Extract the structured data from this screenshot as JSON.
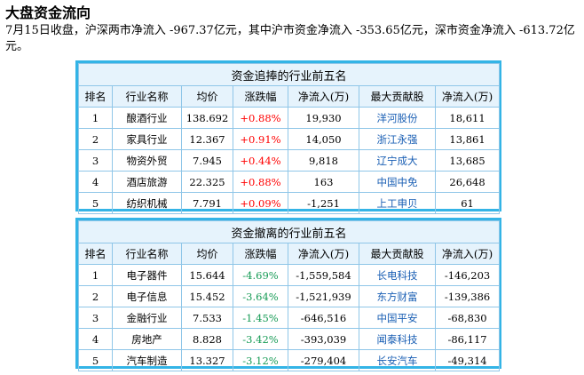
{
  "title": "大盘资金流向",
  "summary": "7月15日收盘，沪深两市净流入 -967.37亿元，其中沪市资金净流入 -353.65亿元，深市资金净流入 -613.72亿元。",
  "inflow_table": {
    "caption": "资金追捧的行业前五名",
    "headers": [
      "排名",
      "行业名称",
      "均价",
      "涨跌幅",
      "净流入(万)",
      "最大贡献股",
      "净流入(万)"
    ],
    "rows": [
      {
        "rank": "1",
        "industry": "酿酒行业",
        "avg_price": "138.692",
        "change": "+0.88%",
        "net_inflow": "19,930",
        "top_stock": "洋河股份",
        "stock_inflow": "18,611"
      },
      {
        "rank": "2",
        "industry": "家具行业",
        "avg_price": "12.367",
        "change": "+0.91%",
        "net_inflow": "14,050",
        "top_stock": "浙江永强",
        "stock_inflow": "13,861"
      },
      {
        "rank": "3",
        "industry": "物资外贸",
        "avg_price": "7.945",
        "change": "+0.44%",
        "net_inflow": "9,818",
        "top_stock": "辽宁成大",
        "stock_inflow": "13,685"
      },
      {
        "rank": "4",
        "industry": "酒店旅游",
        "avg_price": "22.325",
        "change": "+0.88%",
        "net_inflow": "163",
        "top_stock": "中国中免",
        "stock_inflow": "26,648"
      },
      {
        "rank": "5",
        "industry": "纺织机械",
        "avg_price": "7.791",
        "change": "+0.09%",
        "net_inflow": "-1,251",
        "top_stock": "上工申贝",
        "stock_inflow": "61"
      }
    ]
  },
  "outflow_table": {
    "caption": "资金撤离的行业前五名",
    "headers": [
      "排名",
      "行业名称",
      "均价",
      "涨跌幅",
      "净流入(万)",
      "最大贡献股",
      "净流入(万)"
    ],
    "rows": [
      {
        "rank": "1",
        "industry": "电子器件",
        "avg_price": "15.644",
        "change": "-4.69%",
        "net_inflow": "-1,559,584",
        "top_stock": "长电科技",
        "stock_inflow": "-146,203"
      },
      {
        "rank": "2",
        "industry": "电子信息",
        "avg_price": "15.452",
        "change": "-3.64%",
        "net_inflow": "-1,521,939",
        "top_stock": "东方财富",
        "stock_inflow": "-139,386"
      },
      {
        "rank": "3",
        "industry": "金融行业",
        "avg_price": "7.533",
        "change": "-1.45%",
        "net_inflow": "-646,516",
        "top_stock": "中国平安",
        "stock_inflow": "-68,830"
      },
      {
        "rank": "4",
        "industry": "房地产",
        "avg_price": "8.828",
        "change": "-3.42%",
        "net_inflow": "-393,039",
        "top_stock": "闻泰科技",
        "stock_inflow": "-86,117"
      },
      {
        "rank": "5",
        "industry": "汽车制造",
        "avg_price": "13.327",
        "change": "-3.12%",
        "net_inflow": "-279,404",
        "top_stock": "长安汽车",
        "stock_inflow": "-49,314"
      }
    ]
  },
  "colors": {
    "up": "#ff0000",
    "down": "#169b55",
    "link": "#1a5fb4",
    "border": "#33b4e6",
    "header_bg": "#e6f3fc"
  }
}
